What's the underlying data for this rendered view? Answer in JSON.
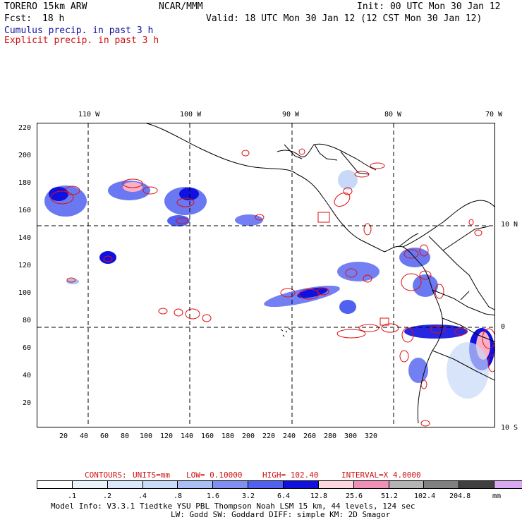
{
  "header": {
    "model": "TORERO  15km ARW",
    "org": "NCAR/MMM",
    "init": "Init: 00 UTC Mon 30 Jan 12",
    "fcst_label": "Fcst:",
    "fcst_value": "18 h",
    "valid": "Valid: 18 UTC Mon 30 Jan 12 (12 CST Mon 30 Jan 12)",
    "cumulus": "Cumulus precip. in past 3 h",
    "explicit": "Explicit precip. in past 3 h"
  },
  "map": {
    "lon_labels": [
      "110 W",
      "100 W",
      "90 W",
      "80 W",
      "70 W"
    ],
    "lat_labels": [
      "10 N",
      "0",
      "10 S"
    ],
    "y_ticks": [
      "220",
      "200",
      "180",
      "160",
      "140",
      "120",
      "100",
      "80",
      "60",
      "40",
      "20"
    ],
    "x_ticks": [
      "20",
      "40",
      "60",
      "80",
      "100",
      "120",
      "140",
      "160",
      "180",
      "200",
      "220",
      "240",
      "260",
      "280",
      "300",
      "320"
    ],
    "colors": {
      "coast": "#000000",
      "grid": "#000000",
      "explicit_contour": "#e01010",
      "cumulus_light": "#c8d8f8",
      "cumulus_mid": "#5060f0",
      "cumulus_dark": "#1010e0",
      "pink": "#f8b0c8"
    }
  },
  "contour_info": {
    "label": "CONTOURS:",
    "units": "UNITS=mm",
    "low": "LOW= 0.10000",
    "high": "HIGH=  102.40",
    "interval": "INTERVAL=X  4.0000"
  },
  "legend": {
    "colors": [
      "#ffffff",
      "#eaf2fa",
      "#dce8fa",
      "#c8dcf8",
      "#a8c0f4",
      "#8090f0",
      "#5060f0",
      "#1010e0",
      "#fcd8dc",
      "#f090b8",
      "#b4b4b4",
      "#808080",
      "#404040",
      "#d8a8f0"
    ],
    "labels": [
      ".1",
      ".2",
      ".4",
      ".8",
      "1.6",
      "3.2",
      "6.4",
      "12.8",
      "25.6",
      "51.2",
      "102.4",
      "204.8"
    ],
    "unit": "mm"
  },
  "footer": {
    "line1": "Model Info: V3.3.1    Tiedtke YSU PBL  Thompson    Noah LSM  15 km,   44 levels,  124 sec",
    "line2": "LW: Godd SW: Goddard DIFF: simple KM: 2D Smagor"
  }
}
